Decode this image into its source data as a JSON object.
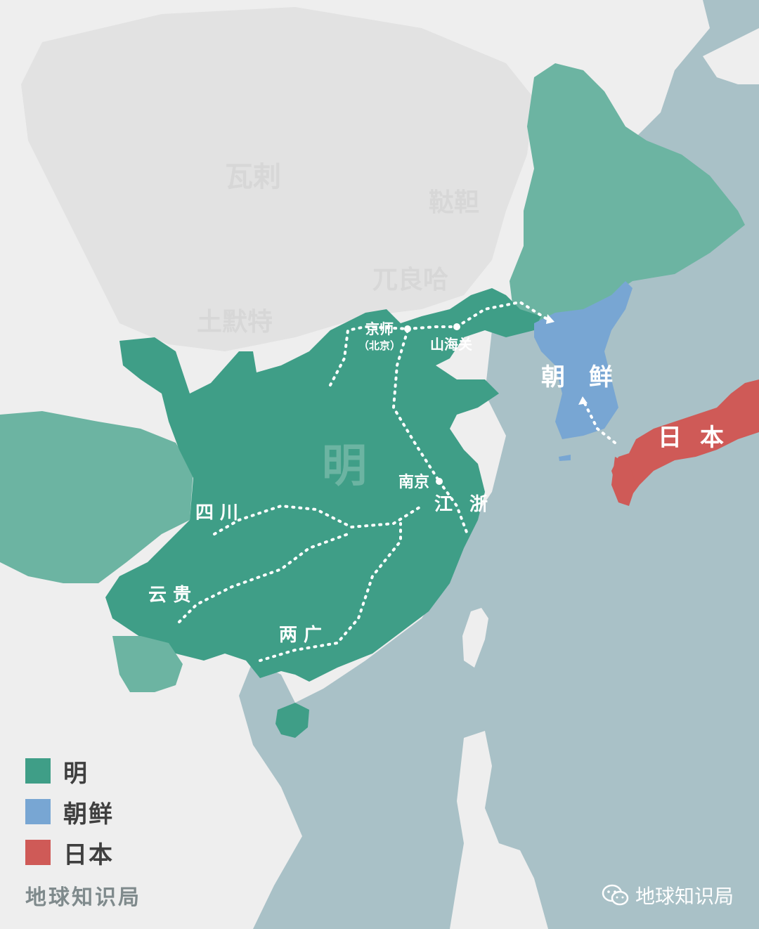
{
  "regions": {
    "ming": {
      "label": "明",
      "color": "#3f9e87"
    },
    "joseon": {
      "label_1": "朝",
      "label_2": "鲜",
      "color": "#78a6d3"
    },
    "japan": {
      "label_1": "日",
      "label_2": "本",
      "color": "#cf5a57"
    },
    "other_ming_color": "#6cb4a2",
    "steppe_color": "#e6e6e6",
    "land_color": "#eeeeee",
    "sea_color": "#a9c1c7"
  },
  "cities": {
    "jingshi": "京师",
    "jingshi_note": "（北京）",
    "shanhaiguan": "山海关",
    "nanjing": "南京"
  },
  "provinces": {
    "sichuan": "四 川",
    "yungui": "云 贵",
    "liangguang": "两 广",
    "jiangzhe_1": "江",
    "jiangzhe_2": "浙"
  },
  "legend": [
    {
      "label": "明",
      "color": "#3f9e87"
    },
    {
      "label": "朝鲜",
      "color": "#78a6d3"
    },
    {
      "label": "日本",
      "color": "#cf5a57"
    }
  ],
  "credits": {
    "left": "地球知识局",
    "right": "地球知识局"
  }
}
